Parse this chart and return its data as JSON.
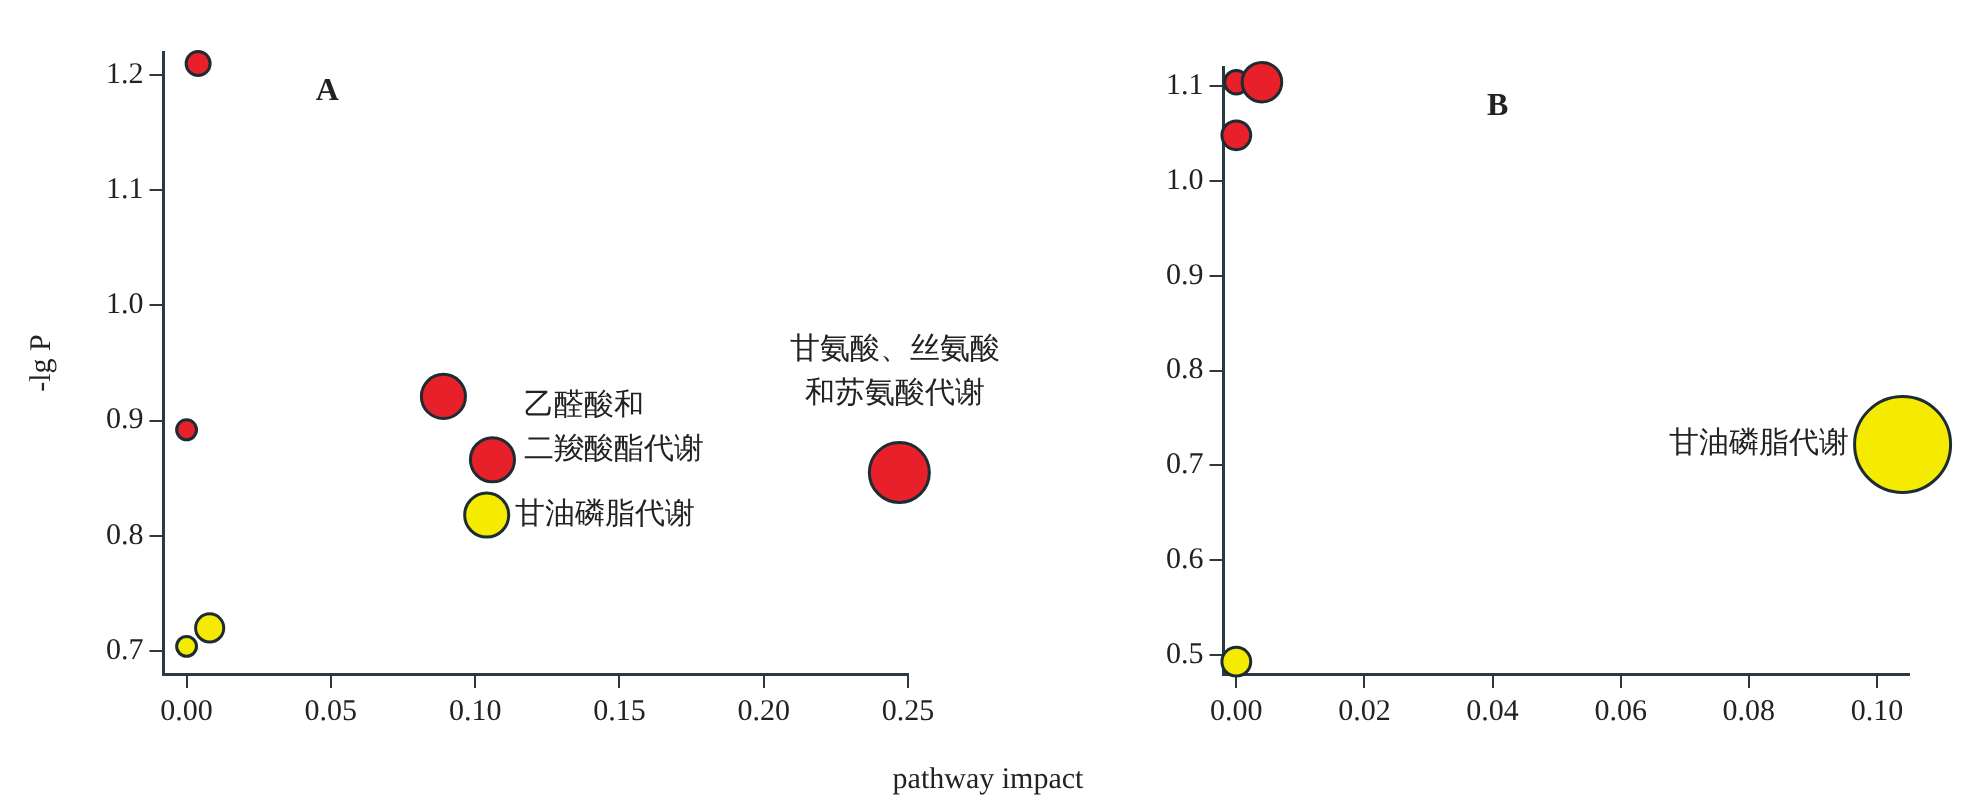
{
  "chart_data": [
    {
      "type": "bubble",
      "title": "A",
      "xlabel": "pathway impact",
      "ylabel": "-lg P",
      "grid": false,
      "xlim": [
        -0.008,
        0.25
      ],
      "xticks": [
        {
          "value": 0,
          "label": "0.00"
        },
        {
          "value": 0.05,
          "label": "0.05"
        },
        {
          "value": 0.1,
          "label": "0.10"
        },
        {
          "value": 0.15,
          "label": "0.15"
        },
        {
          "value": 0.2,
          "label": "0.20"
        },
        {
          "value": 0.25,
          "label": "0.25"
        }
      ],
      "ylim": [
        0.68,
        1.22
      ],
      "yticks": [
        0.7,
        0.8,
        0.9,
        {
          "value": 1.0,
          "label": "1.0"
        },
        1.1,
        1.2
      ],
      "series": [
        {
          "color": "#e8202a",
          "x": [
            0.004,
            0,
            0.089,
            0.106,
            0.247
          ],
          "values": [
            1.21,
            0.892,
            0.921,
            0.866,
            0.855
          ],
          "sizes": [
            0.16,
            0.11,
            0.54,
            0.54,
            1
          ]
        },
        {
          "color": "#f5eb00",
          "x": [
            0.104,
            0.008,
            0
          ],
          "values": [
            0.818,
            0.72,
            0.704
          ],
          "sizes": [
            0.54,
            0.22,
            0.11
          ]
        }
      ],
      "annotations": [
        {
          "text": "乙醛酸和二羧酸酯代谢",
          "x": 0.106,
          "y": 0.866
        },
        {
          "text": "甘氨酸、丝氨酸和苏氨酸代谢",
          "x": 0.247,
          "y": 0.855
        },
        {
          "text": "甘油磷脂代谢",
          "x": 0.104,
          "y": 0.818
        }
      ]
    },
    {
      "type": "bubble",
      "title": "B",
      "grid": false,
      "xlim": [
        -0.002,
        0.105
      ],
      "xticks": [
        {
          "value": 0,
          "label": "0.00"
        },
        {
          "value": 0.02,
          "label": "0.02"
        },
        {
          "value": 0.04,
          "label": "0.04"
        },
        {
          "value": 0.06,
          "label": "0.06"
        },
        {
          "value": 0.08,
          "label": "0.08"
        },
        {
          "value": 0.1,
          "label": "0.10"
        }
      ],
      "ylim": [
        0.48,
        1.12
      ],
      "yticks": [
        0.5,
        0.6,
        0.7,
        0.8,
        0.9,
        {
          "value": 1.0,
          "label": "1.0"
        },
        1.1
      ],
      "series": [
        {
          "color": "#e8202a",
          "x": [
            0,
            0.004,
            0
          ],
          "values": [
            1.104,
            1.104,
            1.048
          ],
          "sizes": [
            0.06,
            0.17,
            0.09
          ]
        },
        {
          "color": "#f5eb00",
          "x": [
            0.104,
            0
          ],
          "values": [
            0.722,
            0.493
          ],
          "sizes": [
            1,
            0.09
          ]
        }
      ],
      "annotations": [
        {
          "text": "甘油磷脂代谢",
          "x": 0.104,
          "y": 0.722
        }
      ]
    }
  ]
}
